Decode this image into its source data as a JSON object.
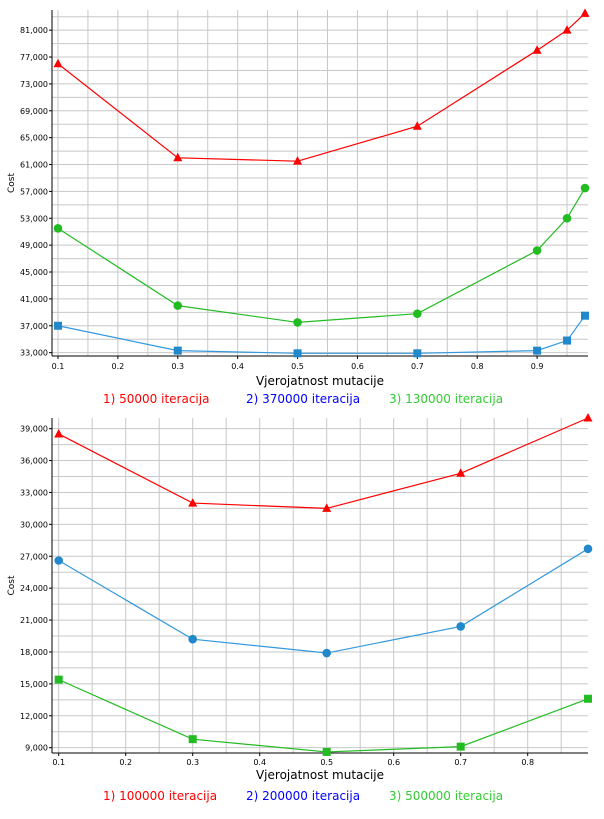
{
  "chart_data": [
    {
      "type": "line",
      "xlabel": "Vjerojatnost mutacije",
      "ylabel": "Cost",
      "xlim": [
        0.09,
        0.985
      ],
      "ylim": [
        32500,
        84000
      ],
      "xticks": [
        0.1,
        0.2,
        0.3,
        0.4,
        0.5,
        0.6,
        0.7,
        0.8,
        0.9
      ],
      "xtick_labels": [
        "0.1",
        "0.2",
        "0.3",
        "0.4",
        "0.5",
        "0.6",
        "0.7",
        "0.8",
        "0.9"
      ],
      "yticks": [
        33000,
        37000,
        41000,
        45000,
        49000,
        53000,
        57000,
        61000,
        65000,
        69000,
        73000,
        77000,
        81000
      ],
      "ytick_labels": [
        "33,000",
        "37,000",
        "41,000",
        "45,000",
        "49,000",
        "53,000",
        "57,000",
        "61,000",
        "65,000",
        "69,000",
        "73,000",
        "77,000",
        "81,000"
      ],
      "xgrid_minor": [
        0.15,
        0.25,
        0.35,
        0.45,
        0.55,
        0.65,
        0.75,
        0.85,
        0.95
      ],
      "ygrid_minor": [
        35000,
        39000,
        43000,
        47000,
        51000,
        55000,
        59000,
        63000,
        67000,
        71000,
        75000,
        79000,
        83000
      ],
      "grid": true,
      "legend_placement": "bottom",
      "series": [
        {
          "name": "1) 50000 iteracija",
          "color": "#ff0000",
          "marker": "triangle",
          "x": [
            0.1,
            0.3,
            0.5,
            0.7,
            0.9,
            0.95,
            0.98
          ],
          "y": [
            76000,
            62000,
            61500,
            66700,
            78000,
            81000,
            83500
          ]
        },
        {
          "name": "2) 370000 iteracija",
          "color": "#0000ff",
          "line_color": "#3399dd",
          "marker": "square",
          "x": [
            0.1,
            0.3,
            0.5,
            0.7,
            0.9,
            0.95,
            0.98
          ],
          "y": [
            37000,
            33300,
            32900,
            32900,
            33300,
            34800,
            38500
          ]
        },
        {
          "name": "3) 130000 iteracija",
          "color": "#33cc33",
          "line_color": "#22bb22",
          "marker": "circle",
          "x": [
            0.1,
            0.3,
            0.5,
            0.7,
            0.9,
            0.95,
            0.98
          ],
          "y": [
            51500,
            40000,
            37500,
            38800,
            48200,
            53000,
            57500
          ]
        }
      ]
    },
    {
      "type": "line",
      "xlabel": "Vjerojatnost mutacije",
      "ylabel": "Cost",
      "xlim": [
        0.09,
        0.89
      ],
      "ylim": [
        8500,
        40000
      ],
      "xticks": [
        0.1,
        0.2,
        0.3,
        0.4,
        0.5,
        0.6,
        0.7,
        0.8
      ],
      "xtick_labels": [
        "0.1",
        "0.2",
        "0.3",
        "0.4",
        "0.5",
        "0.6",
        "0.7",
        "0.8"
      ],
      "yticks": [
        9000,
        12000,
        15000,
        18000,
        21000,
        24000,
        27000,
        30000,
        33000,
        36000,
        39000
      ],
      "ytick_labels": [
        "9,000",
        "12,000",
        "15,000",
        "18,000",
        "21,000",
        "24,000",
        "27,000",
        "30,000",
        "33,000",
        "36,000",
        "39,000"
      ],
      "xgrid_minor": [
        0.15,
        0.25,
        0.35,
        0.45,
        0.55,
        0.65,
        0.75,
        0.85
      ],
      "ygrid_minor": [
        10500,
        13500,
        16500,
        19500,
        22500,
        25500,
        28500,
        31500,
        34500,
        37500
      ],
      "grid": true,
      "legend_placement": "bottom",
      "series": [
        {
          "name": "1) 100000 iteracija",
          "color": "#ff0000",
          "marker": "triangle",
          "x": [
            0.1,
            0.3,
            0.5,
            0.7,
            0.89
          ],
          "y": [
            38500,
            32000,
            31500,
            34800,
            40000
          ]
        },
        {
          "name": "2) 200000 iteracija",
          "color": "#0000ff",
          "line_color": "#3399dd",
          "marker": "circle",
          "x": [
            0.1,
            0.3,
            0.5,
            0.7,
            0.89
          ],
          "y": [
            26600,
            19200,
            17900,
            20400,
            27700
          ]
        },
        {
          "name": "3) 500000 iteracija",
          "color": "#33cc33",
          "line_color": "#22bb22",
          "marker": "square",
          "x": [
            0.1,
            0.3,
            0.5,
            0.7,
            0.89
          ],
          "y": [
            15400,
            9800,
            8600,
            9100,
            13600
          ]
        }
      ]
    }
  ],
  "style": {
    "grid_color": "#c8c8c8",
    "axis_color": "#000000",
    "marker_blue": "#2288cc",
    "marker_green": "#22bb22"
  }
}
